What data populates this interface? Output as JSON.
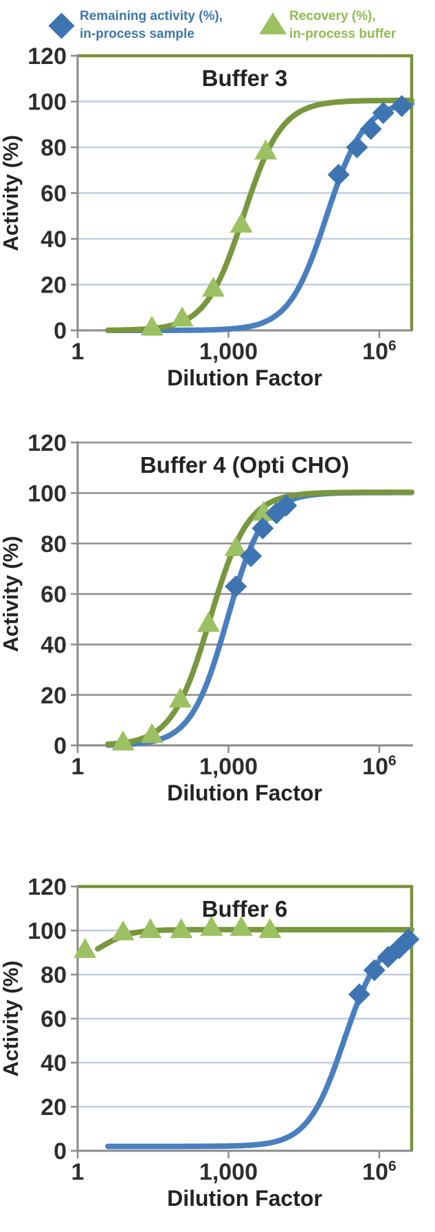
{
  "legend": {
    "items": [
      {
        "id": "remaining-activity",
        "marker": "diamond",
        "marker_color": "#3F74B3",
        "text_color": "#3D76AF",
        "line1": "Remaining activity (%),",
        "line2": "in-process sample"
      },
      {
        "id": "recovery",
        "marker": "triangle",
        "marker_color": "#9CC162",
        "text_color": "#8FBB4F",
        "line1": "Recovery (%),",
        "line2": "in-process buffer"
      }
    ]
  },
  "chart_data": [
    {
      "type": "line",
      "title": "Buffer 3",
      "xlabel": "Dilution Factor",
      "ylabel": "Activity (%)",
      "x_scale": "log",
      "xlim": [
        1,
        4400000
      ],
      "ylim": [
        0,
        120
      ],
      "y_ticks": [
        0,
        20,
        40,
        60,
        80,
        100,
        120
      ],
      "x_ticks": [
        {
          "value": 1,
          "label": "1"
        },
        {
          "value": 1000,
          "label": "1,000"
        },
        {
          "value": 1000000,
          "label": "10⁶"
        }
      ],
      "grid": "on",
      "grid_color": "#BFCDE0",
      "axis_color": "#8A8A8A",
      "frame_color": "#7A913C",
      "olive_frame": true,
      "text_color": "#2E2E2E",
      "series": [
        {
          "name": "Recovery (%), in-process buffer",
          "marker": "triangle",
          "line_color": "#78973E",
          "marker_color": "#9CC162",
          "curve": {
            "base": 0,
            "top": 100.5,
            "ec50": 2000,
            "hill": 1.15,
            "x_start": 4
          },
          "points": [
            [
              30,
              1
            ],
            [
              120,
              5
            ],
            [
              500,
              18
            ],
            [
              1800,
              46
            ],
            [
              5500,
              78
            ]
          ]
        },
        {
          "name": "Remaining activity (%), in-process sample",
          "marker": "diamond",
          "line_color": "#4A7FBF",
          "marker_color": "#3F74B3",
          "curve": {
            "base": 0,
            "top": 100.2,
            "ec50": 90000,
            "hill": 1.15,
            "x_start": 4
          },
          "points": [
            [
              155000,
              68
            ],
            [
              360000,
              80
            ],
            [
              680000,
              88
            ],
            [
              1200000,
              95
            ],
            [
              2800000,
              98
            ]
          ]
        }
      ]
    },
    {
      "type": "line",
      "title": "Buffer 4 (Opti CHO)",
      "xlabel": "Dilution Factor",
      "ylabel": "Activity (%)",
      "x_scale": "log",
      "xlim": [
        1,
        4400000
      ],
      "ylim": [
        0,
        120
      ],
      "y_ticks": [
        0,
        20,
        40,
        60,
        80,
        100,
        120
      ],
      "x_ticks": [
        {
          "value": 1,
          "label": "1"
        },
        {
          "value": 1000,
          "label": "1,000"
        },
        {
          "value": 1000000,
          "label": "10⁶"
        }
      ],
      "grid": "on",
      "grid_color": "#8C8C8C",
      "axis_color": "#8A8A8A",
      "frame_color": "#8C8C8C",
      "olive_frame": false,
      "text_color": "#2E2E2E",
      "series": [
        {
          "name": "Recovery (%), in-process buffer",
          "marker": "triangle",
          "line_color": "#78973E",
          "marker_color": "#9CC162",
          "curve": {
            "base": 0,
            "top": 100.3,
            "ec50": 430,
            "hill": 1.15,
            "x_start": 4
          },
          "points": [
            [
              8,
              1
            ],
            [
              30,
              4
            ],
            [
              110,
              18
            ],
            [
              400,
              48
            ],
            [
              1400,
              78
            ],
            [
              5000,
              92
            ]
          ]
        },
        {
          "name": "Remaining activity (%), in-process sample",
          "marker": "diamond",
          "line_color": "#4A7FBF",
          "marker_color": "#3F74B3",
          "curve": {
            "base": 0,
            "top": 100.2,
            "ec50": 950,
            "hill": 1.2,
            "x_start": 4
          },
          "points": [
            [
              1400,
              63
            ],
            [
              2800,
              75
            ],
            [
              4800,
              86
            ],
            [
              9000,
              92
            ],
            [
              14000,
              95
            ]
          ]
        }
      ]
    },
    {
      "type": "line",
      "title": "Buffer 6",
      "xlabel": "Dilution Factor",
      "ylabel": "Activity (%)",
      "x_scale": "log",
      "xlim": [
        1,
        4400000
      ],
      "ylim": [
        0,
        120
      ],
      "y_ticks": [
        0,
        20,
        40,
        60,
        80,
        100,
        120
      ],
      "x_ticks": [
        {
          "value": 1,
          "label": "1"
        },
        {
          "value": 1000,
          "label": "1,000"
        },
        {
          "value": 1000000,
          "label": "10⁶"
        }
      ],
      "grid": "on",
      "grid_color": "#BFCDE0",
      "axis_color": "#8A8A8A",
      "frame_color": "#7A913C",
      "olive_frame": true,
      "text_color": "#2E2E2E",
      "series": [
        {
          "name": "Recovery (%), in-process buffer",
          "marker": "triangle",
          "line_color": "#78973E",
          "marker_color": "#9CC162",
          "curve": {
            "base": 85,
            "top": 100.4,
            "ec50": 3,
            "hill": 1.5,
            "x_start": 2.5
          },
          "points": [
            [
              1.4,
              91
            ],
            [
              8,
              99
            ],
            [
              28,
              100
            ],
            [
              115,
              100
            ],
            [
              460,
              101
            ],
            [
              1800,
              101
            ],
            [
              6700,
              100
            ]
          ]
        },
        {
          "name": "Remaining activity (%), in-process sample",
          "marker": "diamond",
          "line_color": "#4A7FBF",
          "marker_color": "#3F74B3",
          "curve": {
            "base": 2,
            "top": 98.5,
            "ec50": 200000,
            "hill": 1.2,
            "x_start": 4
          },
          "points": [
            [
              400000,
              71
            ],
            [
              800000,
              82
            ],
            [
              1500000,
              88
            ],
            [
              2500000,
              92
            ],
            [
              3800000,
              96
            ]
          ]
        }
      ]
    }
  ]
}
